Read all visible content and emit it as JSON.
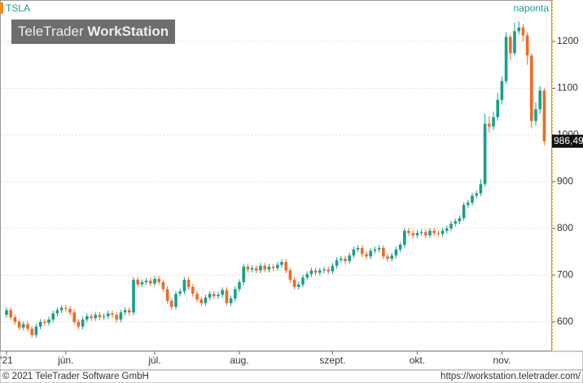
{
  "branding": {
    "logo_light": "TeleTrader",
    "logo_bold": "WorkStation"
  },
  "footer": {
    "copyright": "© 2021 TeleTrader Software GmbH",
    "url": "https://workstation.teletrader.com/"
  },
  "chart_data": {
    "type": "candlestick",
    "interval_label": "naponta",
    "ylim": [
      537,
      1287
    ],
    "yticks": [
      600,
      700,
      800,
      900,
      1000,
      1100,
      1200
    ],
    "grid": true,
    "last_value": {
      "value": 986.49,
      "label": "986,49"
    },
    "categories": [
      "'21",
      null,
      null,
      null,
      null,
      null,
      null,
      null,
      null,
      null,
      null,
      null,
      null,
      null,
      "jún.",
      null,
      null,
      null,
      null,
      null,
      null,
      null,
      null,
      null,
      null,
      null,
      null,
      null,
      null,
      null,
      null,
      null,
      null,
      null,
      null,
      "júl.",
      null,
      null,
      null,
      null,
      null,
      null,
      null,
      null,
      null,
      null,
      null,
      null,
      null,
      null,
      null,
      null,
      null,
      null,
      null,
      "aug.",
      null,
      null,
      null,
      null,
      null,
      null,
      null,
      null,
      null,
      null,
      null,
      null,
      null,
      null,
      null,
      null,
      null,
      null,
      null,
      null,
      null,
      "szept.",
      null,
      null,
      null,
      null,
      null,
      null,
      null,
      null,
      null,
      null,
      null,
      null,
      null,
      null,
      null,
      null,
      null,
      null,
      null,
      "okt.",
      null,
      null,
      null,
      null,
      null,
      null,
      null,
      null,
      null,
      null,
      null,
      null,
      null,
      null,
      null,
      null,
      null,
      null,
      null,
      "nov.",
      null,
      null,
      null,
      null,
      null,
      null,
      null,
      null,
      null,
      null
    ],
    "series": [
      {
        "name": "TSLA",
        "up_color": "#17a08c",
        "down_color": "#f06a24",
        "open": [
          615,
          625,
          610,
          600,
          588,
          595,
          585,
          572,
          590,
          600,
          598,
          605,
          618,
          625,
          630,
          628,
          620,
          600,
          590,
          605,
          612,
          608,
          615,
          610,
          612,
          618,
          615,
          605,
          620,
          625,
          620,
          690,
          680,
          685,
          688,
          682,
          692,
          685,
          670,
          645,
          632,
          660,
          665,
          690,
          675,
          660,
          648,
          640,
          652,
          660,
          655,
          658,
          668,
          640,
          650,
          670,
          685,
          718,
          712,
          715,
          710,
          720,
          712,
          718,
          715,
          722,
          728,
          710,
          690,
          675,
          680,
          695,
          702,
          710,
          705,
          710,
          712,
          708,
          720,
          732,
          735,
          730,
          742,
          755,
          758,
          745,
          740,
          752,
          755,
          758,
          740,
          735,
          742,
          755,
          765,
          795,
          790,
          785,
          790,
          792,
          785,
          795,
          790,
          788,
          795,
          800,
          810,
          815,
          822,
          850,
          855,
          870,
          875,
          895,
          1024,
          1018,
          1038,
          1075,
          1115,
          1210,
          1175,
          1222,
          1230,
          1213,
          1170,
          1030,
          1055,
          1095
        ],
        "high": [
          631,
          631,
          616,
          606,
          601,
          601,
          591,
          596,
          606,
          606,
          611,
          624,
          631,
          636,
          636,
          634,
          626,
          606,
          611,
          618,
          618,
          621,
          621,
          618,
          624,
          624,
          621,
          626,
          631,
          631,
          696,
          696,
          691,
          694,
          694,
          698,
          698,
          691,
          676,
          651,
          666,
          671,
          696,
          696,
          681,
          666,
          654,
          658,
          666,
          666,
          664,
          674,
          674,
          656,
          676,
          691,
          724,
          724,
          721,
          721,
          726,
          726,
          724,
          724,
          728,
          734,
          734,
          716,
          696,
          686,
          701,
          708,
          716,
          716,
          716,
          718,
          718,
          726,
          738,
          741,
          741,
          748,
          761,
          764,
          764,
          751,
          758,
          761,
          764,
          764,
          746,
          748,
          761,
          771,
          801,
          801,
          796,
          796,
          798,
          798,
          801,
          801,
          796,
          801,
          806,
          816,
          821,
          828,
          856,
          861,
          876,
          881,
          905,
          1045,
          1040,
          1050,
          1090,
          1125,
          1220,
          1215,
          1240,
          1243,
          1238,
          1220,
          1175,
          1070,
          1105,
          1100
        ],
        "low": [
          609,
          604,
          594,
          582,
          582,
          579,
          566,
          566,
          584,
          592,
          592,
          599,
          612,
          619,
          622,
          614,
          594,
          584,
          584,
          599,
          602,
          602,
          604,
          604,
          606,
          609,
          599,
          599,
          614,
          614,
          614,
          674,
          674,
          679,
          676,
          676,
          679,
          664,
          639,
          626,
          626,
          654,
          659,
          669,
          654,
          642,
          634,
          634,
          646,
          649,
          649,
          652,
          634,
          634,
          644,
          664,
          679,
          706,
          706,
          704,
          704,
          706,
          706,
          709,
          709,
          716,
          704,
          684,
          669,
          669,
          674,
          689,
          696,
          699,
          699,
          704,
          702,
          702,
          714,
          726,
          724,
          724,
          736,
          749,
          739,
          734,
          734,
          746,
          749,
          734,
          729,
          729,
          736,
          749,
          759,
          784,
          779,
          779,
          784,
          779,
          779,
          784,
          782,
          782,
          789,
          794,
          804,
          809,
          816,
          844,
          849,
          864,
          869,
          890,
          1005,
          1010,
          1030,
          1065,
          1110,
          1160,
          1170,
          1215,
          1200,
          1150,
          1015,
          1020,
          1045,
          978
        ],
        "close": [
          625,
          610,
          600,
          588,
          595,
          585,
          572,
          590,
          600,
          598,
          605,
          618,
          625,
          630,
          628,
          620,
          600,
          590,
          605,
          612,
          608,
          615,
          610,
          612,
          618,
          615,
          605,
          620,
          625,
          620,
          690,
          680,
          685,
          688,
          682,
          692,
          685,
          670,
          645,
          632,
          660,
          665,
          690,
          675,
          660,
          648,
          640,
          652,
          660,
          655,
          658,
          668,
          640,
          650,
          670,
          685,
          718,
          712,
          715,
          710,
          720,
          712,
          718,
          715,
          722,
          728,
          710,
          690,
          675,
          680,
          695,
          702,
          710,
          705,
          710,
          712,
          708,
          720,
          732,
          735,
          730,
          742,
          755,
          758,
          745,
          740,
          752,
          755,
          758,
          740,
          735,
          742,
          755,
          765,
          795,
          790,
          785,
          790,
          792,
          785,
          795,
          790,
          788,
          795,
          800,
          810,
          815,
          822,
          850,
          855,
          870,
          875,
          895,
          1024,
          1018,
          1038,
          1075,
          1115,
          1210,
          1175,
          1222,
          1230,
          1213,
          1170,
          1030,
          1055,
          1095,
          986.49
        ]
      }
    ]
  }
}
